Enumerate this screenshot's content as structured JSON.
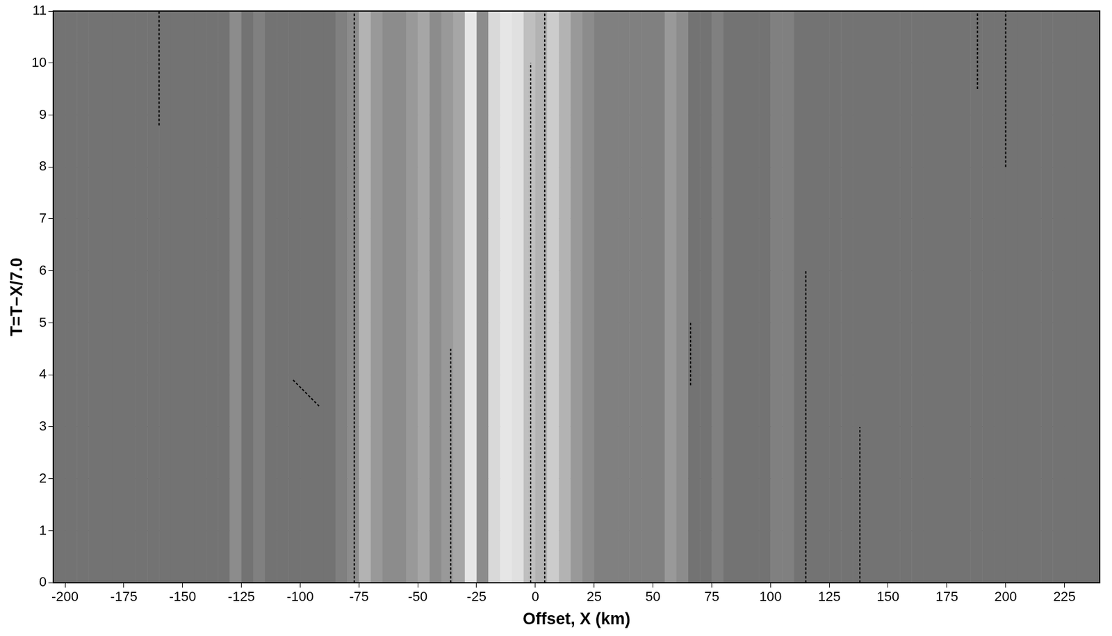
{
  "chart_data": {
    "type": "record_section",
    "x_label": "Offset, X (km)",
    "y_label": "T=T−X/7.0",
    "xlim": [
      -205,
      240
    ],
    "xticks": [
      -200,
      -175,
      -150,
      -125,
      -100,
      -75,
      -50,
      -25,
      0,
      25,
      50,
      75,
      100,
      125,
      150,
      175,
      200,
      225
    ],
    "ylim": [
      0,
      11
    ],
    "yticks": [
      0,
      1,
      2,
      3,
      4,
      5,
      6,
      7,
      8,
      9,
      10,
      11
    ],
    "grid": true,
    "color": "#000000",
    "x": [
      -202.5,
      -197.5,
      -192.5,
      -187.5,
      -182.5,
      -177.5,
      -172.5,
      -167.5,
      -162.5,
      -157.5,
      -152.5,
      -147.5,
      -142.5,
      -137.5,
      -132.5,
      -127.5,
      -122.5,
      -117.5,
      -112.5,
      -107.5,
      -102.5,
      -97.5,
      -92.5,
      -87.5,
      -82.5,
      -77.5,
      -72.5,
      -67.5,
      -62.5,
      -57.5,
      -52.5,
      -47.5,
      -42.5,
      -37.5,
      -32.5,
      -27.5,
      -22.5,
      -17.5,
      -12.5,
      -7.5,
      -2.5,
      2.5,
      7.5,
      12.5,
      17.5,
      22.5,
      27.5,
      32.5,
      37.5,
      42.5,
      47.5,
      52.5,
      57.5,
      62.5,
      67.5,
      72.5,
      77.5,
      82.5,
      87.5,
      92.5,
      97.5,
      102.5,
      107.5,
      112.5,
      117.5,
      122.5,
      127.5,
      132.5,
      137.5,
      142.5,
      147.5,
      152.5,
      157.5,
      162.5,
      167.5,
      172.5,
      177.5,
      182.5,
      187.5,
      192.5,
      197.5,
      202.5,
      207.5,
      212.5,
      217.5,
      222.5,
      227.5,
      232.5,
      237.5
    ],
    "trace_density": [
      0.55,
      0.55,
      0.55,
      0.55,
      0.55,
      0.55,
      0.55,
      0.55,
      0.55,
      0.55,
      0.55,
      0.55,
      0.55,
      0.55,
      0.55,
      0.45,
      0.55,
      0.5,
      0.55,
      0.55,
      0.55,
      0.55,
      0.55,
      0.55,
      0.5,
      0.45,
      0.3,
      0.4,
      0.45,
      0.45,
      0.4,
      0.35,
      0.45,
      0.4,
      0.35,
      0.1,
      0.45,
      0.15,
      0.1,
      0.12,
      0.25,
      0.3,
      0.2,
      0.3,
      0.4,
      0.45,
      0.5,
      0.5,
      0.5,
      0.5,
      0.5,
      0.5,
      0.4,
      0.45,
      0.55,
      0.55,
      0.5,
      0.55,
      0.55,
      0.55,
      0.55,
      0.5,
      0.5,
      0.55,
      0.55,
      0.55,
      0.55,
      0.55,
      0.55,
      0.55,
      0.55,
      0.55,
      0.55,
      0.55,
      0.55,
      0.55,
      0.55,
      0.55,
      0.55,
      0.55,
      0.55,
      0.55,
      0.55,
      0.55,
      0.55,
      0.55,
      0.55,
      0.55,
      0.55
    ],
    "strong_traces": [
      {
        "x": [
          -160,
          -160
        ],
        "y": [
          8.8,
          11
        ]
      },
      {
        "x": [
          -77,
          -77
        ],
        "y": [
          0,
          11
        ]
      },
      {
        "x": [
          -36,
          -36
        ],
        "y": [
          0,
          4.5
        ]
      },
      {
        "x": [
          -2,
          -2
        ],
        "y": [
          0,
          10
        ]
      },
      {
        "x": [
          4,
          4
        ],
        "y": [
          0,
          11
        ]
      },
      {
        "x": [
          66,
          66
        ],
        "y": [
          3.8,
          5
        ]
      },
      {
        "x": [
          115,
          115
        ],
        "y": [
          0,
          6
        ]
      },
      {
        "x": [
          138,
          138
        ],
        "y": [
          0,
          3
        ]
      },
      {
        "x": [
          188,
          188
        ],
        "y": [
          9.5,
          11
        ]
      },
      {
        "x": [
          200,
          200
        ],
        "y": [
          8,
          11
        ]
      },
      {
        "x": [
          -103,
          -92
        ],
        "y": [
          3.9,
          3.4
        ]
      }
    ]
  }
}
